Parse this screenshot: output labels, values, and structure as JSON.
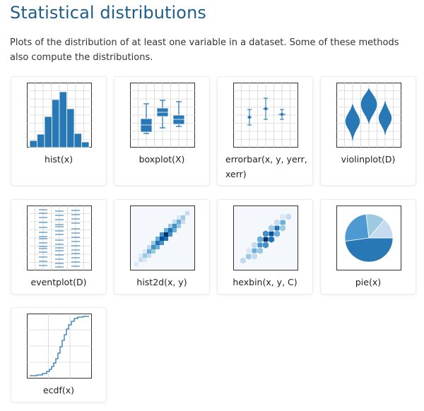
{
  "page": {
    "title": "Statistical distributions",
    "intro": "Plots of the distribution of at least one variable in a dataset. Some of these methods also compute the distributions."
  },
  "colors": {
    "title": "#1f5e8a",
    "plot_blue": "#2878b5",
    "grid": "#c8c8c8"
  },
  "cards": [
    {
      "id": "hist",
      "label": "hist(x)",
      "icon": "histogram-icon"
    },
    {
      "id": "boxplot",
      "label": "boxplot(X)",
      "icon": "boxplot-icon"
    },
    {
      "id": "errorbar",
      "label": "errorbar(x, y, yerr, xerr)",
      "icon": "errorbar-icon"
    },
    {
      "id": "violinplot",
      "label": "violinplot(D)",
      "icon": "violinplot-icon"
    },
    {
      "id": "eventplot",
      "label": "eventplot(D)",
      "icon": "eventplot-icon"
    },
    {
      "id": "hist2d",
      "label": "hist2d(x, y)",
      "icon": "hist2d-icon"
    },
    {
      "id": "hexbin",
      "label": "hexbin(x, y, C)",
      "icon": "hexbin-icon"
    },
    {
      "id": "pie",
      "label": "pie(x)",
      "icon": "pie-icon"
    },
    {
      "id": "ecdf",
      "label": "ecdf(x)",
      "icon": "ecdf-icon"
    }
  ]
}
